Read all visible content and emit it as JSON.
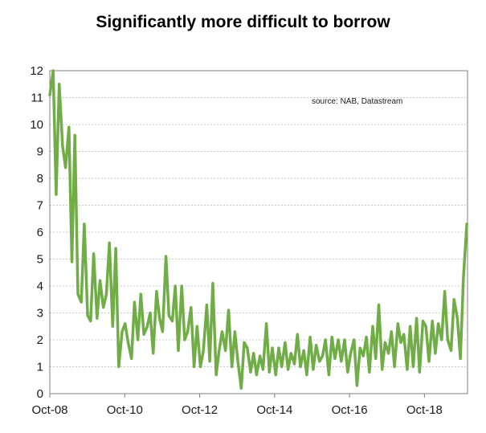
{
  "chart_data": {
    "type": "line",
    "title": "Significantly more difficult to borrow",
    "annotation": "source:  NAB, Datastream",
    "xlabel": "",
    "ylabel": "",
    "ylim": [
      0,
      12
    ],
    "y_ticks": [
      0,
      1,
      2,
      3,
      4,
      5,
      6,
      7,
      8,
      9,
      10,
      11,
      12
    ],
    "x_ticks": [
      {
        "label": "Oct-08",
        "x": 2008.75
      },
      {
        "label": "Oct-10",
        "x": 2010.75
      },
      {
        "label": "Oct-12",
        "x": 2012.75
      },
      {
        "label": "Oct-14",
        "x": 2014.75
      },
      {
        "label": "Oct-16",
        "x": 2016.75
      },
      {
        "label": "Oct-18",
        "x": 2018.75
      }
    ],
    "xlim": [
      2008.75,
      2019.9
    ],
    "grid": true,
    "line_color": "#70ad47",
    "series": [
      {
        "name": "",
        "x": [
          2008.75,
          2008.84,
          2008.92,
          2009.0,
          2009.09,
          2009.17,
          2009.26,
          2009.34,
          2009.42,
          2009.5,
          2009.59,
          2009.67,
          2009.76,
          2009.84,
          2009.92,
          2010.01,
          2010.09,
          2010.18,
          2010.26,
          2010.34,
          2010.43,
          2010.51,
          2010.59,
          2010.68,
          2010.76,
          2010.84,
          2010.93,
          2011.01,
          2011.1,
          2011.18,
          2011.26,
          2011.35,
          2011.43,
          2011.51,
          2011.6,
          2011.68,
          2011.76,
          2011.85,
          2011.93,
          2012.02,
          2012.1,
          2012.18,
          2012.27,
          2012.35,
          2012.43,
          2012.52,
          2012.6,
          2012.68,
          2012.77,
          2012.85,
          2012.94,
          2013.02,
          2013.1,
          2013.19,
          2013.27,
          2013.35,
          2013.44,
          2013.52,
          2013.61,
          2013.69,
          2013.77,
          2013.86,
          2013.94,
          2014.02,
          2014.11,
          2014.19,
          2014.27,
          2014.36,
          2014.44,
          2014.53,
          2014.61,
          2014.69,
          2014.78,
          2014.86,
          2014.94,
          2015.03,
          2015.11,
          2015.19,
          2015.28,
          2015.36,
          2015.44,
          2015.53,
          2015.61,
          2015.7,
          2015.78,
          2015.86,
          2015.95,
          2016.03,
          2016.11,
          2016.2,
          2016.28,
          2016.36,
          2016.45,
          2016.53,
          2016.62,
          2016.7,
          2016.78,
          2016.87,
          2016.95,
          2017.03,
          2017.12,
          2017.2,
          2017.28,
          2017.37,
          2017.45,
          2017.53,
          2017.62,
          2017.7,
          2017.79,
          2017.87,
          2017.95,
          2018.04,
          2018.12,
          2018.2,
          2018.29,
          2018.37,
          2018.45,
          2018.54,
          2018.62,
          2018.71,
          2018.79,
          2018.87,
          2018.96,
          2019.04,
          2019.12,
          2019.21,
          2019.29,
          2019.37,
          2019.46,
          2019.54,
          2019.63,
          2019.71,
          2019.79,
          2019.88
        ],
        "values": [
          11.1,
          12.0,
          7.4,
          11.5,
          9.2,
          8.4,
          9.9,
          4.9,
          9.6,
          3.7,
          3.4,
          6.3,
          2.9,
          2.7,
          5.2,
          2.8,
          4.2,
          3.2,
          3.7,
          5.6,
          2.5,
          5.4,
          1.0,
          2.3,
          2.6,
          1.9,
          1.3,
          3.4,
          2.0,
          3.7,
          2.2,
          2.5,
          3.0,
          1.5,
          3.8,
          2.8,
          2.3,
          5.1,
          2.9,
          2.7,
          4.0,
          1.6,
          4.0,
          2.0,
          2.3,
          3.2,
          1.0,
          2.5,
          1.0,
          1.6,
          3.3,
          1.2,
          4.1,
          0.7,
          1.6,
          2.3,
          1.6,
          3.1,
          1.0,
          2.3,
          1.2,
          0.2,
          1.9,
          1.7,
          0.8,
          1.5,
          0.7,
          1.4,
          0.9,
          2.6,
          0.8,
          1.7,
          0.7,
          1.7,
          1.0,
          1.9,
          0.9,
          1.5,
          1.1,
          2.2,
          1.0,
          1.6,
          0.7,
          2.1,
          0.9,
          1.8,
          1.2,
          1.4,
          2.0,
          0.7,
          2.1,
          1.3,
          2.0,
          1.2,
          2.0,
          0.8,
          1.5,
          2.0,
          0.3,
          1.7,
          1.4,
          2.1,
          0.8,
          2.5,
          1.3,
          3.3,
          0.9,
          1.9,
          1.5,
          2.3,
          1.0,
          2.6,
          1.9,
          2.2,
          0.9,
          2.5,
          1.0,
          2.8,
          0.8,
          2.7,
          2.5,
          1.2,
          2.7,
          1.5,
          2.6,
          2.0,
          3.8,
          2.0,
          1.6,
          3.5,
          2.8,
          1.3,
          4.3,
          6.3
        ],
        "color": "#70ad47"
      }
    ]
  }
}
